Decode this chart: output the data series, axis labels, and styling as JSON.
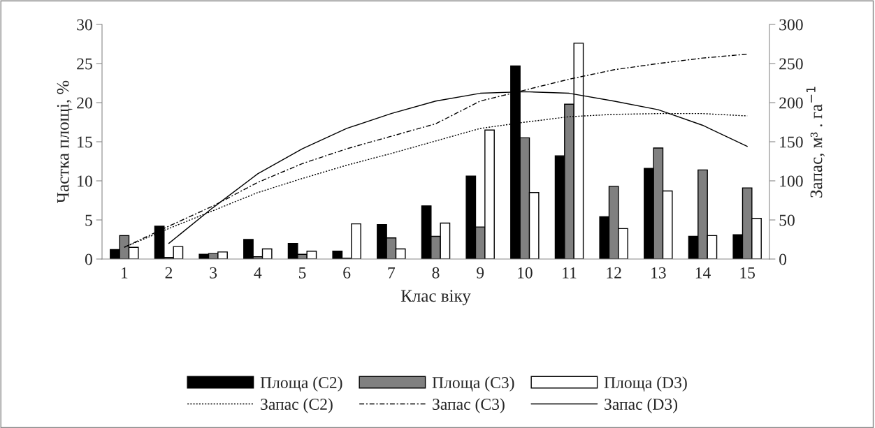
{
  "chart_data": {
    "type": "bar",
    "xlabel": "Клас віку",
    "ylabel": "Частка площі, %",
    "y2label": "Запас, м³ . га$^{−1}$",
    "categories": [
      "1",
      "2",
      "3",
      "4",
      "5",
      "6",
      "7",
      "8",
      "9",
      "10",
      "11",
      "12",
      "13",
      "14",
      "15"
    ],
    "series": [
      {
        "name": "Площа (С2)",
        "color": "#000000",
        "values": [
          1.2,
          4.2,
          0.6,
          2.5,
          2.0,
          1.0,
          4.4,
          6.8,
          10.6,
          24.7,
          13.2,
          5.4,
          11.6,
          2.9,
          3.1
        ]
      },
      {
        "name": "Площа (С3)",
        "color": "#808080",
        "values": [
          3.0,
          0.2,
          0.7,
          0.3,
          0.6,
          0.1,
          2.7,
          2.9,
          4.1,
          15.5,
          19.8,
          9.3,
          14.2,
          11.4,
          9.1
        ]
      },
      {
        "name": "Площа (D3)",
        "color": "#ffffff",
        "values": [
          1.5,
          1.6,
          0.9,
          1.3,
          1.0,
          4.5,
          1.3,
          4.6,
          16.5,
          8.5,
          27.6,
          3.9,
          8.7,
          3.0,
          5.2
        ]
      },
      {
        "name": "Запас (С2)",
        "type": "line",
        "axis": "y2",
        "line_style": "dotted",
        "color": "#000000",
        "values": [
          15,
          39,
          62,
          85,
          103,
          120,
          135,
          151,
          167,
          175,
          182,
          185,
          186,
          186,
          183
        ]
      },
      {
        "name": "Запас (С3)",
        "type": "line",
        "axis": "y2",
        "line_style": "dashdot",
        "color": "#000000",
        "values": [
          15,
          42,
          68,
          98,
          122,
          141,
          157,
          173,
          202,
          216,
          230,
          242,
          250,
          257,
          262
        ]
      },
      {
        "name": "Запас (D3)",
        "type": "line",
        "axis": "y2",
        "line_style": "solid",
        "color": "#000000",
        "values": [
          null,
          20,
          66,
          109,
          141,
          167,
          186,
          202,
          212,
          214,
          212,
          202,
          191,
          171,
          144
        ]
      }
    ],
    "ylim": [
      0,
      30
    ],
    "yticks": [
      0,
      5,
      10,
      15,
      20,
      25,
      30
    ],
    "y2lim": [
      0,
      300
    ],
    "y2ticks": [
      0,
      50,
      100,
      150,
      200,
      250,
      300
    ],
    "legend": "bottom",
    "grid": false
  }
}
